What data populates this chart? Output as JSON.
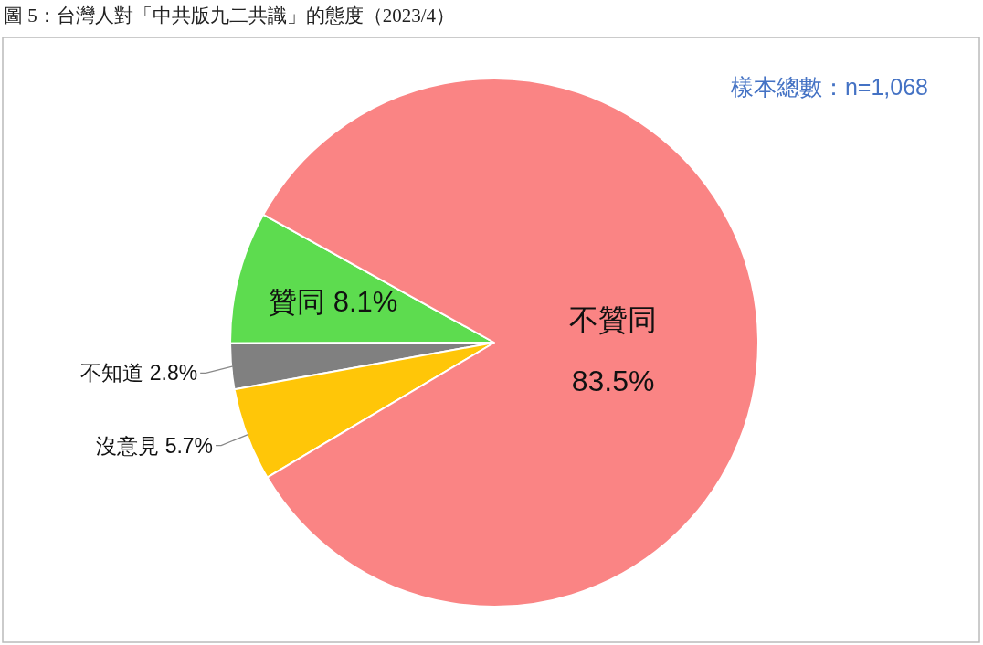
{
  "chart_data": {
    "type": "pie",
    "title": "圖 5：台灣人對「中共版九二共識」的態度（2023/4）",
    "categories": [
      "贊同",
      "不知道",
      "沒意見",
      "不贊同"
    ],
    "values": [
      8.1,
      2.8,
      5.7,
      83.5
    ],
    "value_labels": [
      "8.1%",
      "2.8%",
      "5.7%",
      "83.5%"
    ],
    "colors": [
      "#5ddc4f",
      "#808080",
      "#ffc608",
      "#fa8484"
    ],
    "annotations": [
      "樣本總數：n=1,068"
    ]
  }
}
